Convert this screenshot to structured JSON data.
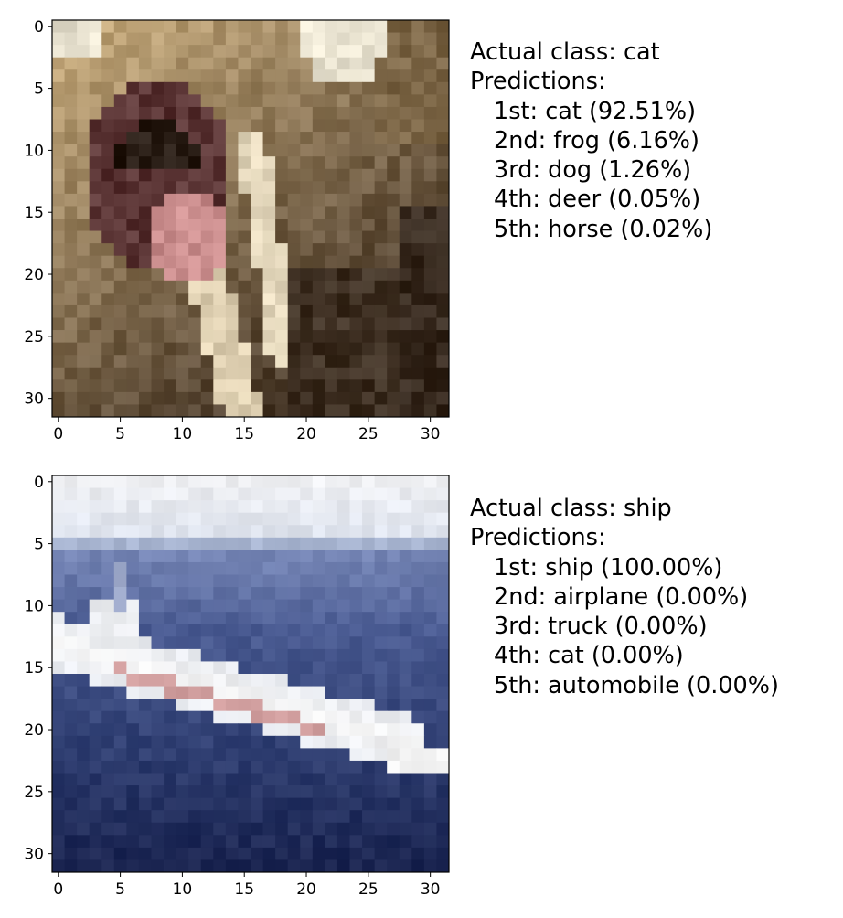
{
  "chart_data": [
    {
      "type": "heatmap",
      "image": "CIFAR-10 sample image of a cat with open mouth (32x32 pixels)",
      "xlim": [
        -0.5,
        31.5
      ],
      "ylim": [
        31.5,
        -0.5
      ],
      "x_ticks": [
        0,
        5,
        10,
        15,
        20,
        25,
        30
      ],
      "y_ticks": [
        0,
        5,
        10,
        15,
        20,
        25,
        30
      ],
      "grid": false,
      "caption": {
        "actual": "Actual class: cat",
        "heading": "Predictions:",
        "predictions": [
          {
            "rank": "1st",
            "label": "cat",
            "prob": 92.51,
            "text": "1st: cat (92.51%)"
          },
          {
            "rank": "2nd",
            "label": "frog",
            "prob": 6.16,
            "text": "2nd: frog (6.16%)"
          },
          {
            "rank": "3rd",
            "label": "dog",
            "prob": 1.26,
            "text": "3rd: dog (1.26%)"
          },
          {
            "rank": "4th",
            "label": "deer",
            "prob": 0.05,
            "text": "4th: deer (0.05%)"
          },
          {
            "rank": "5th",
            "label": "horse",
            "prob": 0.02,
            "text": "5th: horse (0.02%)"
          }
        ]
      },
      "colors": [
        "#efe9d6",
        "#c9ad7e",
        "#9c8258",
        "#6e5a40",
        "#4a3a2a",
        "#2a1e16",
        "#5a3434",
        "#c98c8c",
        "#e8e2d0"
      ]
    },
    {
      "type": "heatmap",
      "image": "CIFAR-10 sample image of a ship on the sea (32x32 pixels)",
      "xlim": [
        -0.5,
        31.5
      ],
      "ylim": [
        31.5,
        -0.5
      ],
      "x_ticks": [
        0,
        5,
        10,
        15,
        20,
        25,
        30
      ],
      "y_ticks": [
        0,
        5,
        10,
        15,
        20,
        25,
        30
      ],
      "grid": false,
      "caption": {
        "actual": "Actual class: ship",
        "heading": "Predictions:",
        "predictions": [
          {
            "rank": "1st",
            "label": "ship",
            "prob": 100.0,
            "text": "1st: ship (100.00%)"
          },
          {
            "rank": "2nd",
            "label": "airplane",
            "prob": 0.0,
            "text": "2nd: airplane (0.00%)"
          },
          {
            "rank": "3rd",
            "label": "truck",
            "prob": 0.0,
            "text": "3rd: truck (0.00%)"
          },
          {
            "rank": "4th",
            "label": "cat",
            "prob": 0.0,
            "text": "4th: cat (0.00%)"
          },
          {
            "rank": "5th",
            "label": "automobile",
            "prob": 0.0,
            "text": "5th: automobile (0.00%)"
          }
        ]
      },
      "colors": [
        "#eeeff2",
        "#dfe4ee",
        "#a9b6d2",
        "#7585b5",
        "#4a5b92",
        "#2e3d70",
        "#1a2450",
        "#f3f3f3",
        "#c27a7a"
      ]
    }
  ]
}
